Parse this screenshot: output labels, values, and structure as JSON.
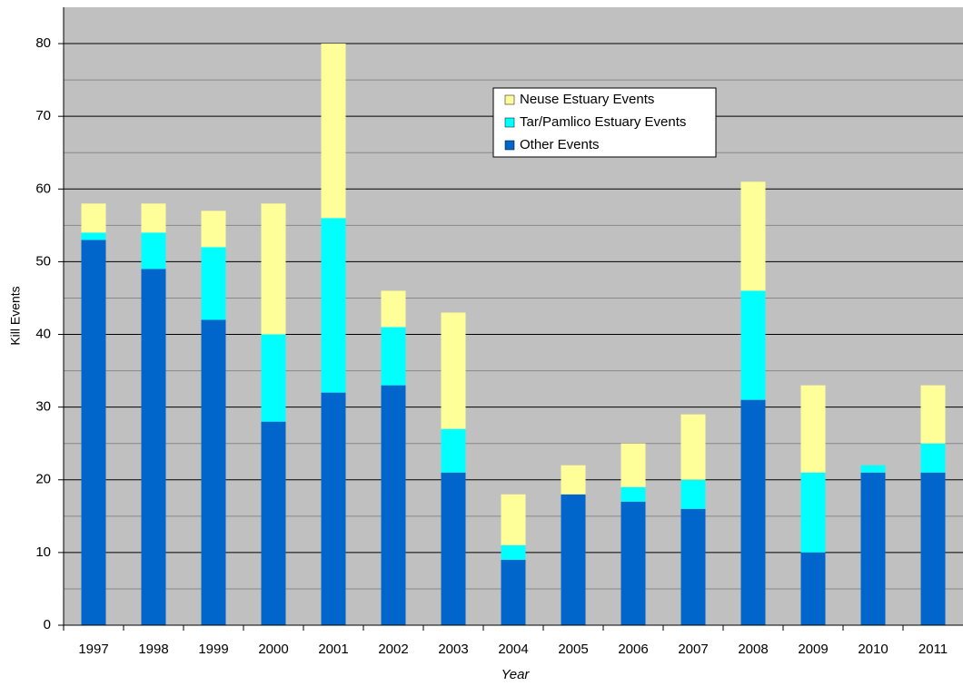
{
  "chart_data": {
    "type": "bar",
    "stacked": true,
    "y_label": "Kill Events",
    "x_label": "Year",
    "categories": [
      "1997",
      "1998",
      "1999",
      "2000",
      "2001",
      "2002",
      "2003",
      "2004",
      "2005",
      "2006",
      "2007",
      "2008",
      "2009",
      "2010",
      "2011"
    ],
    "series": [
      {
        "name": "Other Events",
        "color": "#0066cc",
        "values": [
          53,
          49,
          42,
          28,
          32,
          33,
          21,
          9,
          18,
          17,
          16,
          31,
          10,
          21,
          21
        ]
      },
      {
        "name": "Tar/Pamlico Estuary Events",
        "color": "#00ffff",
        "values": [
          1,
          5,
          10,
          12,
          24,
          8,
          6,
          2,
          0,
          2,
          4,
          15,
          11,
          1,
          4
        ]
      },
      {
        "name": "Neuse Estuary Events",
        "color": "#ffff99",
        "values": [
          4,
          4,
          5,
          18,
          24,
          5,
          16,
          7,
          4,
          6,
          9,
          15,
          12,
          0,
          8
        ]
      }
    ],
    "ylim": [
      0,
      85
    ],
    "yticks": [
      0,
      10,
      20,
      30,
      40,
      50,
      60,
      70,
      80
    ],
    "minor_yticks": [
      5,
      15,
      25,
      35,
      45,
      55,
      65,
      75
    ],
    "grid": true,
    "legend": "top-center"
  }
}
